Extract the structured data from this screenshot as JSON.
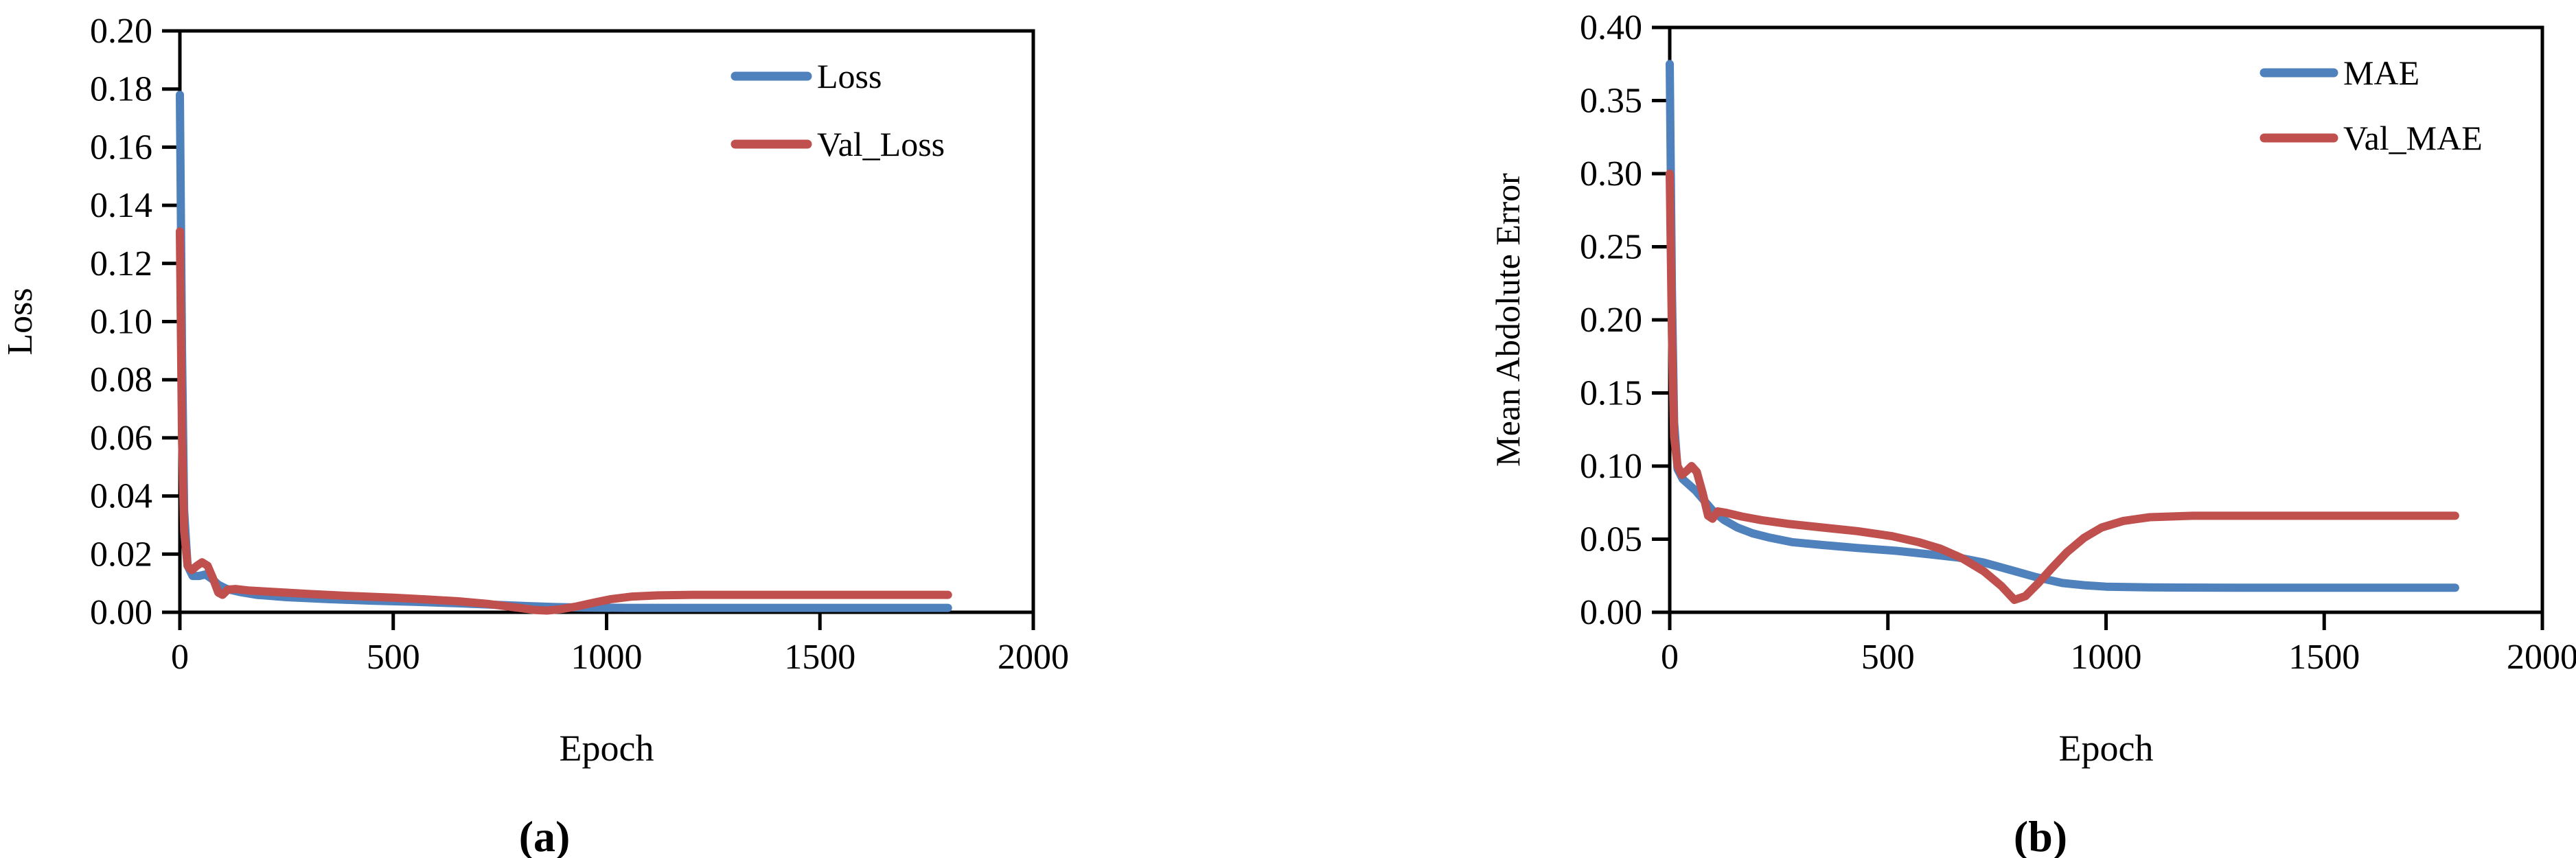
{
  "figure": {
    "background": "#FFFFFF",
    "text_color": "#000000",
    "axis_color": "#000000",
    "panels": [
      {
        "id": "a",
        "caption": "(a)"
      },
      {
        "id": "b",
        "caption": "(b)"
      }
    ]
  },
  "colors": {
    "series_blue": "#4F81BD",
    "series_red": "#C0504D",
    "axis": "#000000",
    "background": "#FFFFFF"
  },
  "chart_data": [
    {
      "type": "line",
      "panel": "a",
      "caption": "(a)",
      "title": "",
      "xlabel": "Epoch",
      "ylabel": "Loss",
      "xlim": [
        0,
        2000
      ],
      "ylim": [
        0,
        0.2
      ],
      "xticks": [
        "0",
        "500",
        "1000",
        "1500",
        "2000"
      ],
      "yticks": [
        "0.00",
        "0.02",
        "0.04",
        "0.06",
        "0.08",
        "0.10",
        "0.12",
        "0.14",
        "0.16",
        "0.18",
        "0.20"
      ],
      "grid": false,
      "legend": {
        "position": "top-right-inside",
        "entries": [
          "Loss",
          "Val_Loss"
        ]
      },
      "series": [
        {
          "name": "Loss",
          "color": "#4F81BD",
          "points": [
            [
              0,
              0.178
            ],
            [
              5,
              0.09
            ],
            [
              10,
              0.035
            ],
            [
              18,
              0.016
            ],
            [
              30,
              0.0125
            ],
            [
              45,
              0.0125
            ],
            [
              60,
              0.013
            ],
            [
              75,
              0.0115
            ],
            [
              90,
              0.0095
            ],
            [
              110,
              0.008
            ],
            [
              140,
              0.007
            ],
            [
              180,
              0.006
            ],
            [
              250,
              0.0052
            ],
            [
              350,
              0.0045
            ],
            [
              450,
              0.004
            ],
            [
              550,
              0.0036
            ],
            [
              650,
              0.0031
            ],
            [
              750,
              0.0025
            ],
            [
              820,
              0.0021
            ],
            [
              880,
              0.0018
            ],
            [
              950,
              0.0016
            ],
            [
              1050,
              0.0015
            ],
            [
              1200,
              0.0015
            ],
            [
              1500,
              0.0015
            ],
            [
              1800,
              0.0015
            ]
          ]
        },
        {
          "name": "Val_Loss",
          "color": "#C0504D",
          "points": [
            [
              0,
              0.131
            ],
            [
              5,
              0.06
            ],
            [
              10,
              0.028
            ],
            [
              18,
              0.016
            ],
            [
              28,
              0.0145
            ],
            [
              40,
              0.016
            ],
            [
              52,
              0.0172
            ],
            [
              65,
              0.016
            ],
            [
              78,
              0.0115
            ],
            [
              90,
              0.0068
            ],
            [
              100,
              0.006
            ],
            [
              112,
              0.0078
            ],
            [
              130,
              0.008
            ],
            [
              160,
              0.0075
            ],
            [
              220,
              0.007
            ],
            [
              300,
              0.0063
            ],
            [
              400,
              0.0056
            ],
            [
              500,
              0.005
            ],
            [
              580,
              0.0044
            ],
            [
              650,
              0.0038
            ],
            [
              720,
              0.0029
            ],
            [
              780,
              0.0018
            ],
            [
              830,
              0.0008
            ],
            [
              860,
              0.0006
            ],
            [
              890,
              0.001
            ],
            [
              930,
              0.002
            ],
            [
              970,
              0.0033
            ],
            [
              1010,
              0.0045
            ],
            [
              1060,
              0.0054
            ],
            [
              1120,
              0.0058
            ],
            [
              1200,
              0.006
            ],
            [
              1500,
              0.006
            ],
            [
              1800,
              0.006
            ]
          ]
        }
      ]
    },
    {
      "type": "line",
      "panel": "b",
      "caption": "(b)",
      "title": "",
      "xlabel": "Epoch",
      "ylabel": "Mean Abdolute Error",
      "xlim": [
        0,
        2000
      ],
      "ylim": [
        0,
        0.4
      ],
      "xticks": [
        "0",
        "500",
        "1000",
        "1500",
        "2000"
      ],
      "yticks": [
        "0.00",
        "0.05",
        "0.10",
        "0.15",
        "0.20",
        "0.25",
        "0.30",
        "0.35",
        "0.40"
      ],
      "grid": false,
      "legend": {
        "position": "top-right-inside",
        "entries": [
          "MAE",
          "Val_MAE"
        ]
      },
      "series": [
        {
          "name": "MAE",
          "color": "#4F81BD",
          "points": [
            [
              0,
              0.375
            ],
            [
              5,
              0.22
            ],
            [
              10,
              0.13
            ],
            [
              18,
              0.098
            ],
            [
              30,
              0.091
            ],
            [
              45,
              0.087
            ],
            [
              60,
              0.083
            ],
            [
              80,
              0.076
            ],
            [
              100,
              0.069
            ],
            [
              125,
              0.063
            ],
            [
              155,
              0.058
            ],
            [
              190,
              0.054
            ],
            [
              230,
              0.051
            ],
            [
              280,
              0.048
            ],
            [
              350,
              0.046
            ],
            [
              430,
              0.044
            ],
            [
              520,
              0.042
            ],
            [
              600,
              0.0395
            ],
            [
              660,
              0.0375
            ],
            [
              720,
              0.034
            ],
            [
              780,
              0.029
            ],
            [
              840,
              0.024
            ],
            [
              900,
              0.02
            ],
            [
              950,
              0.0185
            ],
            [
              1000,
              0.0175
            ],
            [
              1100,
              0.017
            ],
            [
              1300,
              0.0168
            ],
            [
              1500,
              0.0168
            ],
            [
              1800,
              0.0168
            ]
          ]
        },
        {
          "name": "Val_MAE",
          "color": "#C0504D",
          "points": [
            [
              0,
              0.3
            ],
            [
              5,
              0.19
            ],
            [
              10,
              0.12
            ],
            [
              18,
              0.1
            ],
            [
              28,
              0.094
            ],
            [
              40,
              0.097
            ],
            [
              50,
              0.1
            ],
            [
              62,
              0.096
            ],
            [
              75,
              0.082
            ],
            [
              88,
              0.066
            ],
            [
              98,
              0.064
            ],
            [
              110,
              0.069
            ],
            [
              130,
              0.068
            ],
            [
              165,
              0.0655
            ],
            [
              210,
              0.063
            ],
            [
              270,
              0.0605
            ],
            [
              350,
              0.058
            ],
            [
              430,
              0.0555
            ],
            [
              510,
              0.052
            ],
            [
              570,
              0.048
            ],
            [
              620,
              0.0435
            ],
            [
              670,
              0.037
            ],
            [
              720,
              0.028
            ],
            [
              760,
              0.018
            ],
            [
              790,
              0.0085
            ],
            [
              815,
              0.011
            ],
            [
              845,
              0.02
            ],
            [
              875,
              0.03
            ],
            [
              910,
              0.041
            ],
            [
              950,
              0.051
            ],
            [
              990,
              0.058
            ],
            [
              1040,
              0.0625
            ],
            [
              1100,
              0.065
            ],
            [
              1200,
              0.066
            ],
            [
              1500,
              0.066
            ],
            [
              1800,
              0.066
            ]
          ]
        }
      ]
    }
  ]
}
